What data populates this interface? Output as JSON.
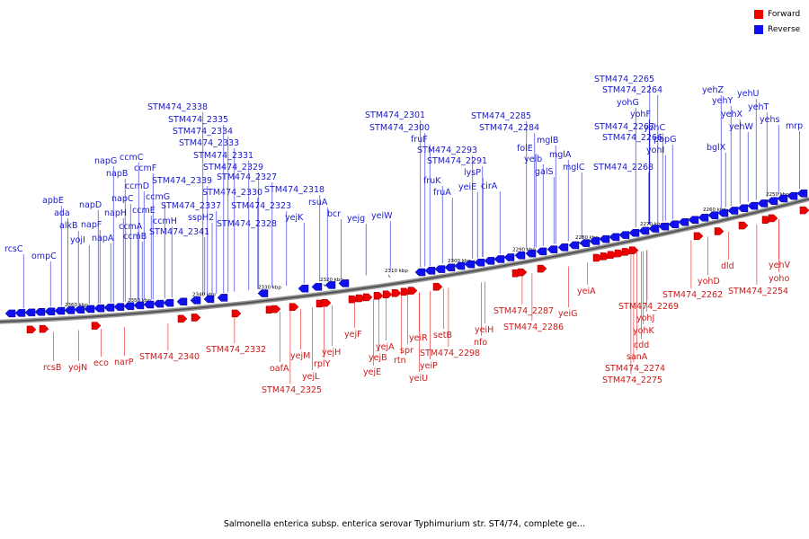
{
  "legend": {
    "forward": {
      "label": "Forward",
      "color": "#ee0000"
    },
    "reverse": {
      "label": "Reverse",
      "color": "#1010ee"
    }
  },
  "caption": "Salmonella enterica subsp. enterica serovar Typhimurium str. ST4/74, complete ge...",
  "axis_ticks": [
    "2250 kbp",
    "2260 kbp",
    "2270 kbp",
    "2280 kbp",
    "2290 kbp",
    "2300 kbp",
    "2310 kbp",
    "2320 kbp",
    "2330 kbp",
    "2340 kbp",
    "2350 kbp",
    "2360 kbp"
  ],
  "reverse_genes": [
    "mrp",
    "yehs",
    "yehT",
    "yehU",
    "yehW",
    "yehX",
    "yehY",
    "yehZ",
    "bglX",
    "STM474_2265",
    "STM474_2264",
    "yohG",
    "yohF",
    "yohC",
    "pbpG",
    "yohI",
    "STM474_2267",
    "STM474_2266",
    "STM474_2268",
    "mglC",
    "mglA",
    "galS",
    "mglB",
    "yeib",
    "folE",
    "STM474_2285",
    "STM474_2284",
    "cirA",
    "yeiE",
    "lysP",
    "STM474_2291",
    "STM474_2293",
    "fruA",
    "fruK",
    "fruF",
    "STM474_2300",
    "STM474_2301",
    "yeiW",
    "yejg",
    "bcr",
    "rsuA",
    "yejK",
    "STM474_2318",
    "STM474_2323",
    "STM474_2328",
    "STM474_2327",
    "STM474_2330",
    "STM474_2329",
    "STM474_2331",
    "STM474_2333",
    "STM474_2334",
    "STM474_2335",
    "STM474_2338",
    "sspH2",
    "STM474_2337",
    "STM474_2341",
    "STM474_2339",
    "ccmH",
    "ccmG",
    "ccmE",
    "ccmF",
    "ccmD",
    "ccmC",
    "ccmB",
    "ccmA",
    "napC",
    "napB",
    "napG",
    "napH",
    "napA",
    "napF",
    "napD",
    "yojI",
    "alkB",
    "ada",
    "apbE",
    "ompC",
    "rcsC"
  ],
  "forward_genes": [
    "yehV",
    "yoho",
    "dld",
    "STM474_2254",
    "yohD",
    "STM474_2262",
    "yohJ",
    "yohK",
    "cdd",
    "sanA",
    "STM474_2274",
    "STM474_2275",
    "STM474_2269",
    "yeiA",
    "yeiG",
    "STM474_2287",
    "STM474_2286",
    "yeiH",
    "nfo",
    "setB",
    "STM474_2298",
    "yeiR",
    "yeiP",
    "yeiU",
    "spr",
    "rtn",
    "yejA",
    "yejB",
    "yejE",
    "yejF",
    "yejH",
    "rplY",
    "yejM",
    "yejL",
    "oafA",
    "STM474_2325",
    "STM474_2332",
    "STM474_2340",
    "narP",
    "eco",
    "yojN",
    "rcsB"
  ]
}
